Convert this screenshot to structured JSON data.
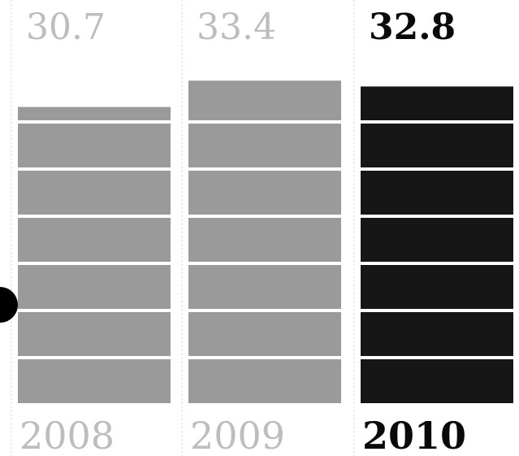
{
  "chart_data": {
    "type": "bar",
    "categories": [
      "2008",
      "2009",
      "2010"
    ],
    "values": [
      30.7,
      33.4,
      32.8
    ],
    "value_labels": [
      "30.7",
      "33.4",
      "32.8"
    ],
    "highlighted_category": "2010",
    "colors": {
      "muted_bar": "#9a9a9a",
      "muted_text": "#bdbdbd",
      "highlight_bar": "#161616",
      "highlight_text": "#0a0a0a",
      "marker": "#000000"
    },
    "title": "",
    "xlabel": "",
    "ylabel": "",
    "ylim": [
      0,
      35
    ],
    "grid": false,
    "legend": "none"
  }
}
